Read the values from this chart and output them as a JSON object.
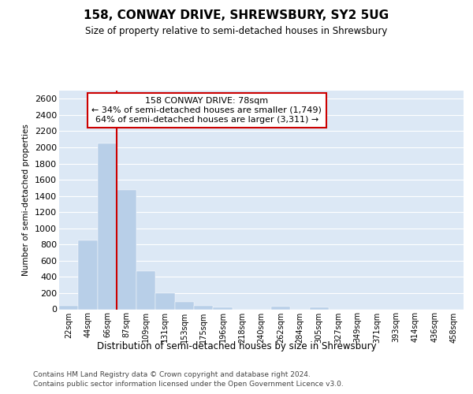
{
  "title": "158, CONWAY DRIVE, SHREWSBURY, SY2 5UG",
  "subtitle": "Size of property relative to semi-detached houses in Shrewsbury",
  "xlabel": "Distribution of semi-detached houses by size in Shrewsbury",
  "ylabel": "Number of semi-detached properties",
  "categories": [
    "22sqm",
    "44sqm",
    "66sqm",
    "87sqm",
    "109sqm",
    "131sqm",
    "153sqm",
    "175sqm",
    "196sqm",
    "218sqm",
    "240sqm",
    "262sqm",
    "284sqm",
    "305sqm",
    "327sqm",
    "349sqm",
    "371sqm",
    "393sqm",
    "414sqm",
    "436sqm",
    "458sqm"
  ],
  "values": [
    40,
    850,
    2050,
    1470,
    470,
    200,
    90,
    40,
    20,
    0,
    0,
    30,
    0,
    20,
    0,
    0,
    0,
    0,
    0,
    0,
    0
  ],
  "bar_color": "#b8cfe8",
  "vline_color": "#cc0000",
  "annotation_box_edge_color": "#cc0000",
  "marker_label": "158 CONWAY DRIVE: 78sqm",
  "smaller_pct": "34%",
  "smaller_count": "1,749",
  "larger_pct": "64%",
  "larger_count": "3,311",
  "ylim": [
    0,
    2700
  ],
  "yticks": [
    0,
    200,
    400,
    600,
    800,
    1000,
    1200,
    1400,
    1600,
    1800,
    2000,
    2200,
    2400,
    2600
  ],
  "plot_bg_color": "#dce8f5",
  "grid_color": "#ffffff",
  "footer1": "Contains HM Land Registry data © Crown copyright and database right 2024.",
  "footer2": "Contains public sector information licensed under the Open Government Licence v3.0."
}
